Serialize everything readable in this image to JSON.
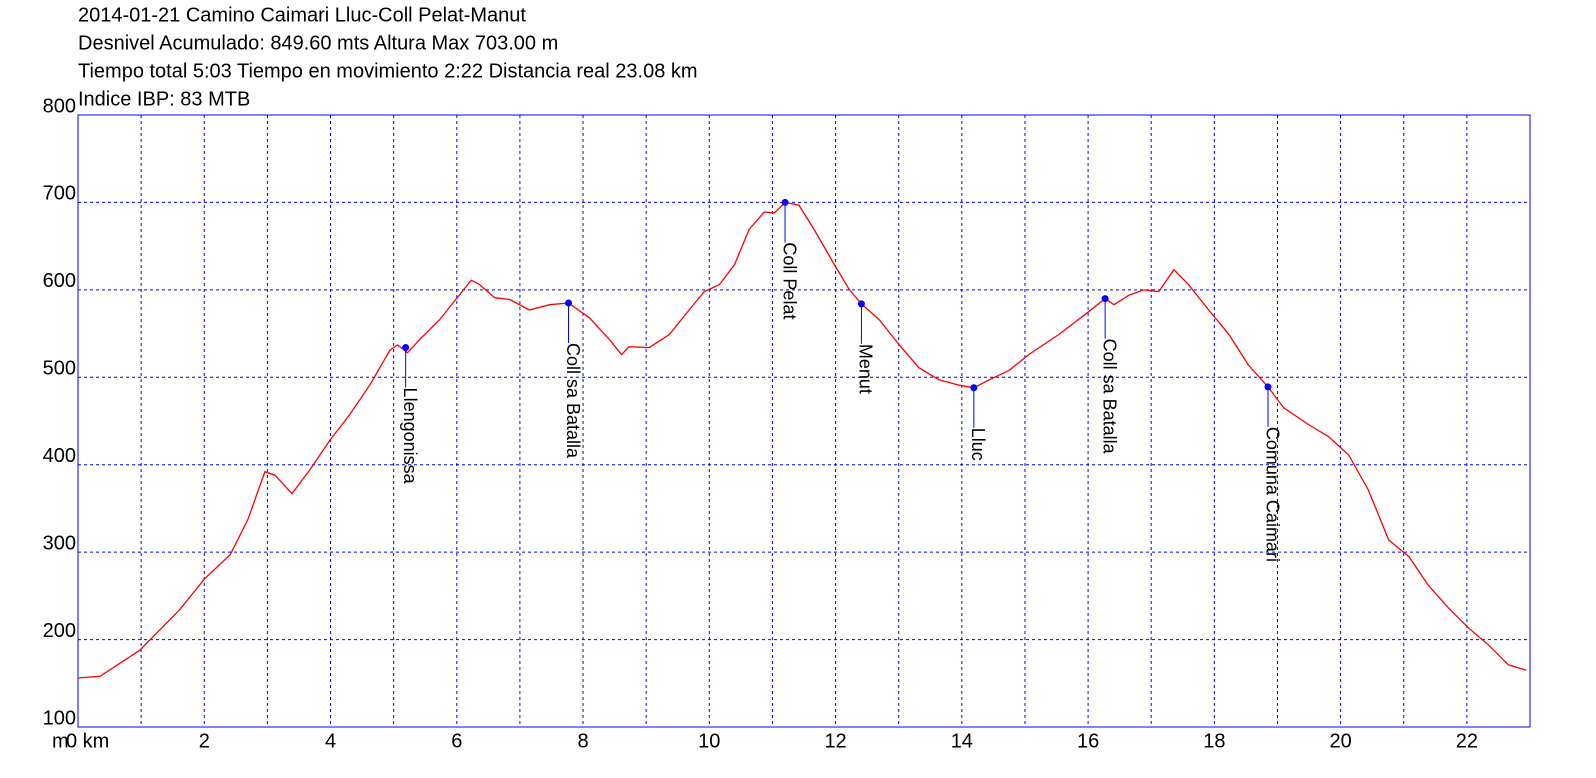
{
  "chart_data": {
    "type": "line",
    "title_lines": [
      "2014-01-21 Camino Caimari Lluc-Coll Pelat-Manut",
      "Desnivel Acumulado: 849.60 mts  Altura Max 703.00 m",
      "Tiempo total 5:03 Tiempo en movimiento 2:22 Distancia real 23.08 km",
      "Indice IBP: 83 MTB"
    ],
    "ylabel": "m",
    "color": "#ff0000",
    "x": [
      0,
      0.35,
      0.98,
      1.61,
      2.01,
      2.41,
      2.69,
      2.96,
      3.12,
      3.39,
      3.67,
      3.99,
      4.3,
      4.62,
      4.94,
      5.06,
      5.22,
      5.41,
      5.73,
      6.04,
      6.23,
      6.36,
      6.6,
      6.84,
      7.15,
      7.47,
      7.77,
      8.1,
      8.42,
      8.61,
      8.73,
      9.05,
      9.37,
      9.68,
      9.92,
      10.16,
      10.4,
      10.63,
      10.87,
      11.03,
      11.2,
      11.42,
      11.66,
      11.98,
      12.22,
      12.41,
      12.69,
      13.01,
      13.32,
      13.64,
      13.96,
      14.19,
      14.43,
      14.75,
      15.06,
      15.54,
      16.01,
      16.27,
      16.41,
      16.65,
      16.88,
      17.12,
      17.36,
      17.59,
      17.91,
      18.23,
      18.54,
      18.85,
      19.1,
      19.49,
      19.81,
      20.13,
      20.44,
      20.76,
      21.08,
      21.39,
      21.71,
      22.03,
      22.34,
      22.66,
      22.94
    ],
    "values": [
      156,
      158,
      188,
      234,
      270,
      297,
      337,
      392,
      388,
      367,
      394,
      428,
      457,
      491,
      531,
      537,
      528,
      543,
      566,
      594,
      611,
      606,
      591,
      589,
      577,
      583,
      585,
      568,
      543,
      526,
      535,
      534,
      549,
      577,
      598,
      606,
      629,
      669,
      689,
      688,
      700,
      697,
      669,
      629,
      600,
      584,
      566,
      537,
      511,
      497,
      491,
      488,
      497,
      508,
      526,
      549,
      575,
      590,
      583,
      594,
      600,
      598,
      623,
      606,
      577,
      549,
      514,
      489,
      465,
      446,
      432,
      411,
      371,
      314,
      295,
      262,
      236,
      213,
      194,
      171,
      165
    ],
    "waypoint_color": "#0000ff",
    "waypoints": [
      {
        "label": "Llengonissa",
        "x": 5.19,
        "y": 534
      },
      {
        "label": "Coll sa Batalla",
        "x": 7.77,
        "y": 585
      },
      {
        "label": "Coll Pelat",
        "x": 11.2,
        "y": 700
      },
      {
        "label": "Menut",
        "x": 12.41,
        "y": 584
      },
      {
        "label": "Lluc",
        "x": 14.19,
        "y": 488
      },
      {
        "label": "Coll sa Batalla",
        "x": 16.27,
        "y": 590
      },
      {
        "label": "Comuna Caimari",
        "x": 18.85,
        "y": 489
      }
    ],
    "xlim": [
      0,
      23
    ],
    "ylim": [
      100,
      800
    ],
    "xticks": [
      {
        "value": 0,
        "label": "0 km"
      },
      2,
      4,
      6,
      8,
      10,
      12,
      14,
      16,
      18,
      20,
      22
    ],
    "xminorgrid": [
      1,
      3,
      5,
      7,
      9,
      11,
      13,
      15,
      17,
      19,
      21
    ],
    "yticks": [
      100,
      200,
      300,
      400,
      500,
      600,
      700,
      800
    ],
    "grid": true
  }
}
